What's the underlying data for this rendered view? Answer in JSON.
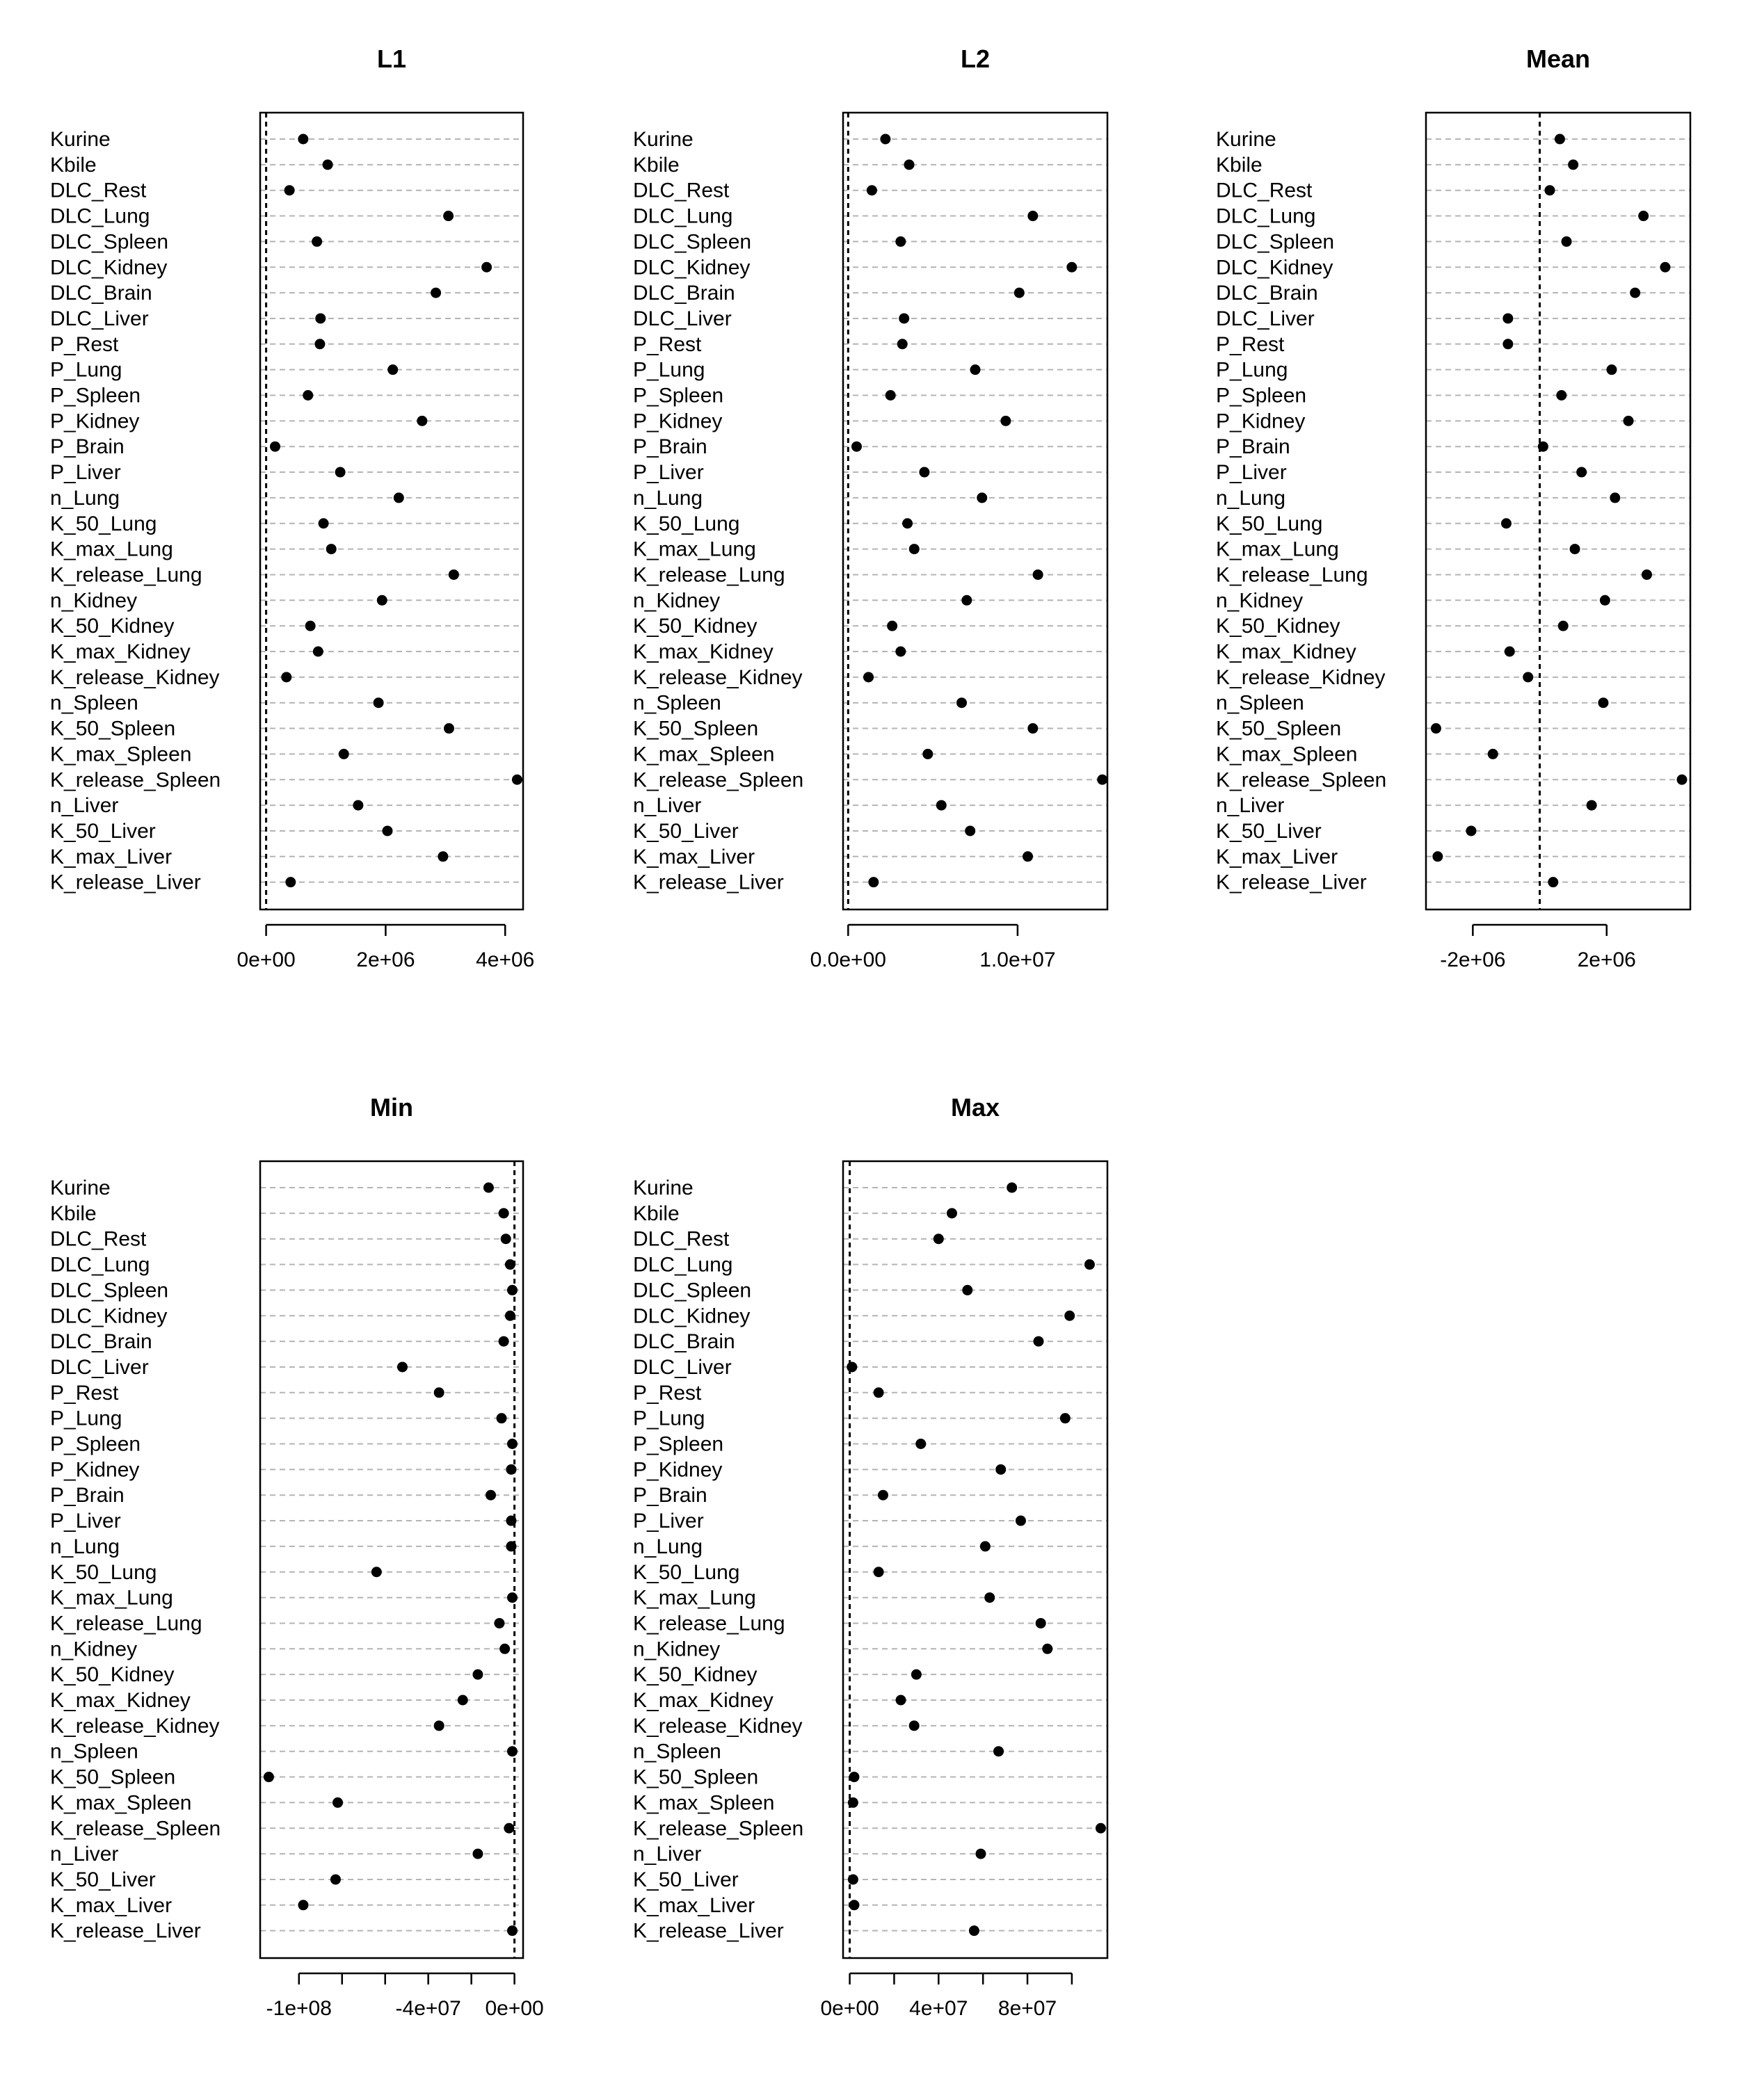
{
  "chart_data": [
    {
      "type": "scatter",
      "title": "L1",
      "xlabel": "",
      "ylabel": "",
      "xlim": [
        -100000,
        4300000
      ],
      "zero_line": true,
      "grid": "horizontal dashed",
      "xticks": [
        {
          "value": 0,
          "label": "0e+00"
        },
        {
          "value": 2000000,
          "label": "2e+06"
        },
        {
          "value": 4000000,
          "label": "4e+06"
        }
      ],
      "categories": [
        "Kurine",
        "Kbile",
        "DLC_Rest",
        "DLC_Lung",
        "DLC_Spleen",
        "DLC_Kidney",
        "DLC_Brain",
        "DLC_Liver",
        "P_Rest",
        "P_Lung",
        "P_Spleen",
        "P_Kidney",
        "P_Brain",
        "P_Liver",
        "n_Lung",
        "K_50_Lung",
        "K_max_Lung",
        "K_release_Lung",
        "n_Kidney",
        "K_50_Kidney",
        "K_max_Kidney",
        "K_release_Kidney",
        "n_Spleen",
        "K_50_Spleen",
        "K_max_Spleen",
        "K_release_Spleen",
        "n_Liver",
        "K_50_Liver",
        "K_max_Liver",
        "K_release_Liver"
      ],
      "values": [
        620000,
        1030000,
        390000,
        3050000,
        850000,
        3690000,
        2840000,
        910000,
        900000,
        2120000,
        700000,
        2610000,
        150000,
        1240000,
        2220000,
        960000,
        1090000,
        3140000,
        1940000,
        740000,
        870000,
        340000,
        1880000,
        3060000,
        1300000,
        4200000,
        1540000,
        2030000,
        2960000,
        410000
      ]
    },
    {
      "type": "scatter",
      "title": "L2",
      "xlabel": "",
      "ylabel": "",
      "xlim": [
        -300000,
        15300000
      ],
      "zero_line": true,
      "grid": "horizontal dashed",
      "xticks": [
        {
          "value": 0,
          "label": "0.0e+00"
        },
        {
          "value": 10000000,
          "label": "1.0e+07"
        }
      ],
      "categories": [
        "Kurine",
        "Kbile",
        "DLC_Rest",
        "DLC_Lung",
        "DLC_Spleen",
        "DLC_Kidney",
        "DLC_Brain",
        "DLC_Liver",
        "P_Rest",
        "P_Lung",
        "P_Spleen",
        "P_Kidney",
        "P_Brain",
        "P_Liver",
        "n_Lung",
        "K_50_Lung",
        "K_max_Lung",
        "K_release_Lung",
        "n_Kidney",
        "K_50_Kidney",
        "K_max_Kidney",
        "K_release_Kidney",
        "n_Spleen",
        "K_50_Spleen",
        "K_max_Spleen",
        "K_release_Spleen",
        "n_Liver",
        "K_50_Liver",
        "K_max_Liver",
        "K_release_Liver"
      ],
      "values": [
        2200000,
        3600000,
        1400000,
        10900000,
        3100000,
        13200000,
        10100000,
        3300000,
        3200000,
        7500000,
        2500000,
        9300000,
        500000,
        4500000,
        7900000,
        3500000,
        3900000,
        11200000,
        7000000,
        2600000,
        3100000,
        1200000,
        6700000,
        10900000,
        4700000,
        15000000,
        5500000,
        7200000,
        10600000,
        1500000
      ]
    },
    {
      "type": "scatter",
      "title": "Mean",
      "xlabel": "",
      "ylabel": "",
      "xlim": [
        -3400000,
        4500000
      ],
      "zero_line": true,
      "grid": "horizontal dashed",
      "xticks": [
        {
          "value": -2000000,
          "label": "-2e+06"
        },
        {
          "value": 2000000,
          "label": "2e+06"
        }
      ],
      "categories": [
        "Kurine",
        "Kbile",
        "DLC_Rest",
        "DLC_Lung",
        "DLC_Spleen",
        "DLC_Kidney",
        "DLC_Brain",
        "DLC_Liver",
        "P_Rest",
        "P_Lung",
        "P_Spleen",
        "P_Kidney",
        "P_Brain",
        "P_Liver",
        "n_Lung",
        "K_50_Lung",
        "K_max_Lung",
        "K_release_Lung",
        "n_Kidney",
        "K_50_Kidney",
        "K_max_Kidney",
        "K_release_Kidney",
        "n_Spleen",
        "K_50_Spleen",
        "K_max_Spleen",
        "K_release_Spleen",
        "n_Liver",
        "K_50_Liver",
        "K_max_Liver",
        "K_release_Liver"
      ],
      "values": [
        600000,
        1000000,
        300000,
        3100000,
        800000,
        3750000,
        2850000,
        -950000,
        -950000,
        2150000,
        650000,
        2650000,
        100000,
        1250000,
        2250000,
        -1000000,
        1050000,
        3200000,
        1950000,
        700000,
        -900000,
        -350000,
        1900000,
        -3100000,
        -1400000,
        4250000,
        1550000,
        -2050000,
        -3050000,
        400000
      ]
    },
    {
      "type": "scatter",
      "title": "Min",
      "xlabel": "",
      "ylabel": "",
      "xlim": [
        -118000000,
        4000000
      ],
      "zero_line": true,
      "grid": "horizontal dashed",
      "xticks": [
        {
          "value": -100000000,
          "label": "-1e+08"
        },
        {
          "value": -80000000,
          "label": ""
        },
        {
          "value": -60000000,
          "label": ""
        },
        {
          "value": -40000000,
          "label": "-4e+07"
        },
        {
          "value": -20000000,
          "label": ""
        },
        {
          "value": 0,
          "label": "0e+00"
        }
      ],
      "categories": [
        "Kurine",
        "Kbile",
        "DLC_Rest",
        "DLC_Lung",
        "DLC_Spleen",
        "DLC_Kidney",
        "DLC_Brain",
        "DLC_Liver",
        "P_Rest",
        "P_Lung",
        "P_Spleen",
        "P_Kidney",
        "P_Brain",
        "P_Liver",
        "n_Lung",
        "K_50_Lung",
        "K_max_Lung",
        "K_release_Lung",
        "n_Kidney",
        "K_50_Kidney",
        "K_max_Kidney",
        "K_release_Kidney",
        "n_Spleen",
        "K_50_Spleen",
        "K_max_Spleen",
        "K_release_Spleen",
        "n_Liver",
        "K_50_Liver",
        "K_max_Liver",
        "K_release_Liver"
      ],
      "values": [
        -12000000,
        -5000000,
        -4000000,
        -2000000,
        -1000000,
        -2000000,
        -5000000,
        -52000000,
        -35000000,
        -6000000,
        -1000000,
        -1500000,
        -11000000,
        -1500000,
        -1500000,
        -64000000,
        -1000000,
        -7000000,
        -4500000,
        -17000000,
        -24000000,
        -35000000,
        -1000000,
        -114000000,
        -82000000,
        -2500000,
        -17000000,
        -83000000,
        -98000000,
        -1000000
      ]
    },
    {
      "type": "scatter",
      "title": "Max",
      "xlabel": "",
      "ylabel": "",
      "xlim": [
        -3000000,
        116000000
      ],
      "zero_line": true,
      "grid": "horizontal dashed",
      "xticks": [
        {
          "value": 0,
          "label": "0e+00"
        },
        {
          "value": 20000000,
          "label": ""
        },
        {
          "value": 40000000,
          "label": "4e+07"
        },
        {
          "value": 60000000,
          "label": ""
        },
        {
          "value": 80000000,
          "label": "8e+07"
        },
        {
          "value": 100000000,
          "label": ""
        }
      ],
      "categories": [
        "Kurine",
        "Kbile",
        "DLC_Rest",
        "DLC_Lung",
        "DLC_Spleen",
        "DLC_Kidney",
        "DLC_Brain",
        "DLC_Liver",
        "P_Rest",
        "P_Lung",
        "P_Spleen",
        "P_Kidney",
        "P_Brain",
        "P_Liver",
        "n_Lung",
        "K_50_Lung",
        "K_max_Lung",
        "K_release_Lung",
        "n_Kidney",
        "K_50_Kidney",
        "K_max_Kidney",
        "K_release_Kidney",
        "n_Spleen",
        "K_50_Spleen",
        "K_max_Spleen",
        "K_release_Spleen",
        "n_Liver",
        "K_50_Liver",
        "K_max_Liver",
        "K_release_Liver"
      ],
      "values": [
        73000000,
        46000000,
        40000000,
        108000000,
        53000000,
        99000000,
        85000000,
        1000000,
        13000000,
        97000000,
        32000000,
        68000000,
        15000000,
        77000000,
        61000000,
        13000000,
        63000000,
        86000000,
        89000000,
        30000000,
        23000000,
        29000000,
        67000000,
        2000000,
        1500000,
        113000000,
        59000000,
        1500000,
        2000000,
        56000000
      ]
    }
  ]
}
